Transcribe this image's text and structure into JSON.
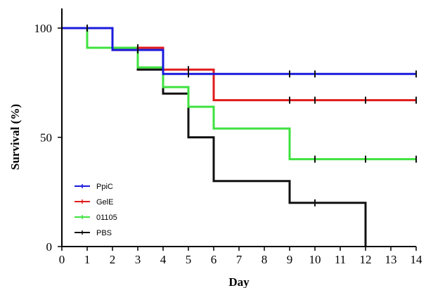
{
  "chart_data": {
    "type": "line",
    "step": true,
    "title": "",
    "xlabel": "Day",
    "ylabel": "Survival (%)",
    "xlim": [
      0,
      14
    ],
    "ylim": [
      0,
      100
    ],
    "x_ticks": [
      "0",
      "1",
      "2",
      "3",
      "4",
      "5",
      "6",
      "7",
      "8",
      "9",
      "10",
      "11",
      "12",
      "13",
      "14"
    ],
    "y_ticks": [
      "0",
      "50",
      "100"
    ],
    "grid": false,
    "legend_position": "lower-left",
    "series": [
      {
        "name": "PpiC",
        "color": "#1a1adc",
        "steps": [
          [
            0,
            100
          ],
          [
            2,
            90
          ],
          [
            4,
            79
          ],
          [
            14,
            79
          ]
        ],
        "censor_marks": [
          [
            1,
            100
          ],
          [
            3,
            90
          ],
          [
            5,
            79
          ],
          [
            9,
            79
          ],
          [
            10,
            79
          ],
          [
            14,
            79
          ]
        ]
      },
      {
        "name": "GelE",
        "color": "#e01b1b",
        "steps": [
          [
            0,
            100
          ],
          [
            2,
            90
          ],
          [
            3,
            91
          ],
          [
            4,
            81
          ],
          [
            6,
            67
          ],
          [
            14,
            67
          ]
        ],
        "censor_marks": [
          [
            1,
            100
          ],
          [
            3,
            91
          ],
          [
            5,
            81
          ],
          [
            9,
            67
          ],
          [
            10,
            67
          ],
          [
            12,
            67
          ],
          [
            14,
            67
          ]
        ]
      },
      {
        "name": "01105",
        "color": "#3ee23e",
        "steps": [
          [
            0,
            100
          ],
          [
            1,
            91
          ],
          [
            3,
            82
          ],
          [
            4,
            73
          ],
          [
            5,
            64
          ],
          [
            6,
            54
          ],
          [
            9,
            40
          ],
          [
            14,
            40
          ]
        ],
        "censor_marks": [
          [
            10,
            40
          ],
          [
            12,
            40
          ],
          [
            14,
            40
          ]
        ]
      },
      {
        "name": "PBS",
        "color": "#111111",
        "steps": [
          [
            0,
            100
          ],
          [
            1,
            91
          ],
          [
            3,
            81
          ],
          [
            4,
            70
          ],
          [
            5,
            50
          ],
          [
            6,
            30
          ],
          [
            9,
            20
          ],
          [
            12,
            0
          ]
        ],
        "censor_marks": [
          [
            10,
            20
          ]
        ]
      }
    ]
  }
}
